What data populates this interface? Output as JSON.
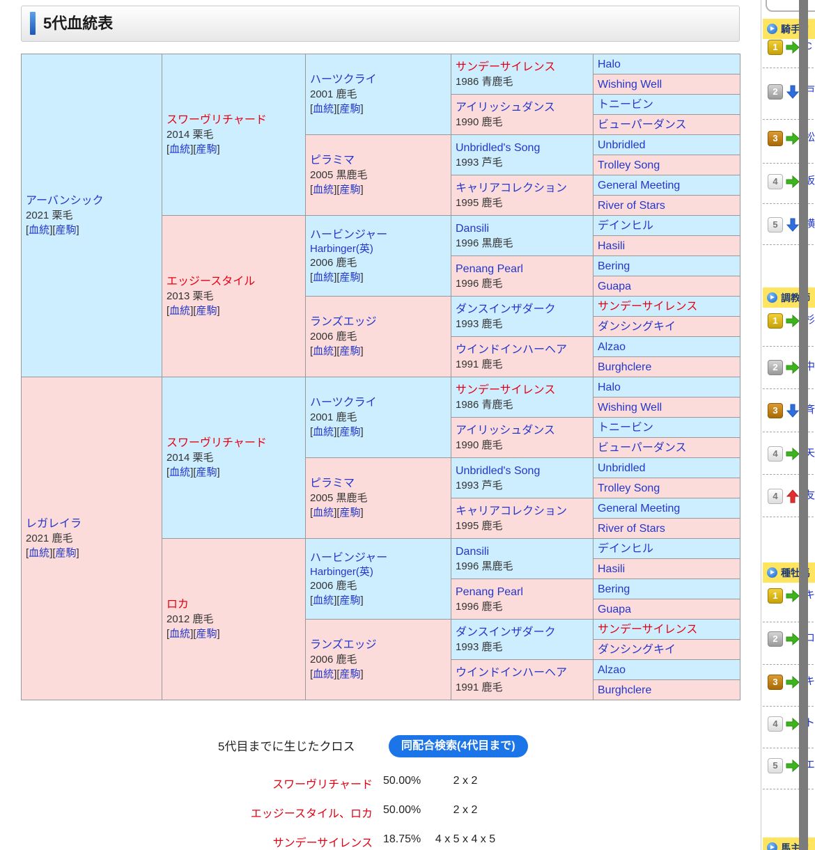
{
  "header": {
    "title": "5代血統表"
  },
  "pedigree": {
    "bloodline_label": "血統",
    "offspring_label": "産駒",
    "generations": [
      [
        {
          "name": "アーバンシック",
          "meta": "2021 栗毛",
          "sex": "m",
          "style": "link",
          "links": true
        },
        {
          "name": "レガレイラ",
          "meta": "2021 鹿毛",
          "sex": "f",
          "style": "link",
          "links": true
        }
      ],
      [
        {
          "name": "スワーヴリチャード",
          "meta": "2014 栗毛",
          "sex": "m",
          "style": "red",
          "links": true
        },
        {
          "name": "エッジースタイル",
          "meta": "2013 栗毛",
          "sex": "f",
          "style": "red",
          "links": true
        },
        {
          "name": "スワーヴリチャード",
          "meta": "2014 栗毛",
          "sex": "m",
          "style": "red",
          "links": true
        },
        {
          "name": "ロカ",
          "meta": "2012 鹿毛",
          "sex": "f",
          "style": "red",
          "links": true
        }
      ],
      [
        {
          "name": "ハーツクライ",
          "meta": "2001 鹿毛",
          "sex": "m",
          "style": "link",
          "links": true
        },
        {
          "name": "ピラミマ",
          "meta": "2005 黒鹿毛",
          "sex": "f",
          "style": "link",
          "links": true
        },
        {
          "name": "ハービンジャー",
          "name2": "Harbinger(英)",
          "meta": "2006 鹿毛",
          "sex": "m",
          "style": "link",
          "links": true
        },
        {
          "name": "ランズエッジ",
          "meta": "2006 鹿毛",
          "sex": "f",
          "style": "link",
          "links": true
        },
        {
          "name": "ハーツクライ",
          "meta": "2001 鹿毛",
          "sex": "m",
          "style": "link",
          "links": true
        },
        {
          "name": "ピラミマ",
          "meta": "2005 黒鹿毛",
          "sex": "f",
          "style": "link",
          "links": true
        },
        {
          "name": "ハービンジャー",
          "name2": "Harbinger(英)",
          "meta": "2006 鹿毛",
          "sex": "m",
          "style": "link",
          "links": true
        },
        {
          "name": "ランズエッジ",
          "meta": "2006 鹿毛",
          "sex": "f",
          "style": "link",
          "links": true
        }
      ],
      [
        {
          "name": "サンデーサイレンス",
          "meta": "1986 青鹿毛",
          "sex": "m",
          "style": "red"
        },
        {
          "name": "アイリッシュダンス",
          "meta": "1990 鹿毛",
          "sex": "f",
          "style": "link"
        },
        {
          "name": "Unbridled's Song",
          "meta": "1993 芦毛",
          "sex": "m",
          "style": "link"
        },
        {
          "name": "キャリアコレクション",
          "meta": "1995 鹿毛",
          "sex": "f",
          "style": "link"
        },
        {
          "name": "Dansili",
          "meta": "1996 黒鹿毛",
          "sex": "m",
          "style": "link"
        },
        {
          "name": "Penang Pearl",
          "meta": "1996 鹿毛",
          "sex": "f",
          "style": "link"
        },
        {
          "name": "ダンスインザダーク",
          "meta": "1993 鹿毛",
          "sex": "m",
          "style": "link"
        },
        {
          "name": "ウインドインハーヘア",
          "meta": "1991 鹿毛",
          "sex": "f",
          "style": "link"
        },
        {
          "name": "サンデーサイレンス",
          "meta": "1986 青鹿毛",
          "sex": "m",
          "style": "red"
        },
        {
          "name": "アイリッシュダンス",
          "meta": "1990 鹿毛",
          "sex": "f",
          "style": "link"
        },
        {
          "name": "Unbridled's Song",
          "meta": "1993 芦毛",
          "sex": "m",
          "style": "link"
        },
        {
          "name": "キャリアコレクション",
          "meta": "1995 鹿毛",
          "sex": "f",
          "style": "link"
        },
        {
          "name": "Dansili",
          "meta": "1996 黒鹿毛",
          "sex": "m",
          "style": "link"
        },
        {
          "name": "Penang Pearl",
          "meta": "1996 鹿毛",
          "sex": "f",
          "style": "link"
        },
        {
          "name": "ダンスインザダーク",
          "meta": "1993 鹿毛",
          "sex": "m",
          "style": "link"
        },
        {
          "name": "ウインドインハーヘア",
          "meta": "1991 鹿毛",
          "sex": "f",
          "style": "link"
        }
      ],
      [
        {
          "name": "Halo",
          "sex": "m",
          "style": "link"
        },
        {
          "name": "Wishing Well",
          "sex": "f",
          "style": "link"
        },
        {
          "name": "トニービン",
          "sex": "m",
          "style": "link"
        },
        {
          "name": "ビューパーダンス",
          "sex": "f",
          "style": "link"
        },
        {
          "name": "Unbridled",
          "sex": "m",
          "style": "link"
        },
        {
          "name": "Trolley Song",
          "sex": "f",
          "style": "link"
        },
        {
          "name": "General Meeting",
          "sex": "m",
          "style": "link"
        },
        {
          "name": "River of Stars",
          "sex": "f",
          "style": "link"
        },
        {
          "name": "デインヒル",
          "sex": "m",
          "style": "link"
        },
        {
          "name": "Hasili",
          "sex": "f",
          "style": "link"
        },
        {
          "name": "Bering",
          "sex": "m",
          "style": "link"
        },
        {
          "name": "Guapa",
          "sex": "f",
          "style": "link"
        },
        {
          "name": "サンデーサイレンス",
          "sex": "m",
          "style": "red"
        },
        {
          "name": "ダンシングキイ",
          "sex": "f",
          "style": "link"
        },
        {
          "name": "Alzao",
          "sex": "m",
          "style": "link"
        },
        {
          "name": "Burghclere",
          "sex": "f",
          "style": "link"
        },
        {
          "name": "Halo",
          "sex": "m",
          "style": "link"
        },
        {
          "name": "Wishing Well",
          "sex": "f",
          "style": "link"
        },
        {
          "name": "トニービン",
          "sex": "m",
          "style": "link"
        },
        {
          "name": "ビューパーダンス",
          "sex": "f",
          "style": "link"
        },
        {
          "name": "Unbridled",
          "sex": "m",
          "style": "link"
        },
        {
          "name": "Trolley Song",
          "sex": "f",
          "style": "link"
        },
        {
          "name": "General Meeting",
          "sex": "m",
          "style": "link"
        },
        {
          "name": "River of Stars",
          "sex": "f",
          "style": "link"
        },
        {
          "name": "デインヒル",
          "sex": "m",
          "style": "link"
        },
        {
          "name": "Hasili",
          "sex": "f",
          "style": "link"
        },
        {
          "name": "Bering",
          "sex": "m",
          "style": "link"
        },
        {
          "name": "Guapa",
          "sex": "f",
          "style": "link"
        },
        {
          "name": "サンデーサイレンス",
          "sex": "m",
          "style": "red"
        },
        {
          "name": "ダンシングキイ",
          "sex": "f",
          "style": "link"
        },
        {
          "name": "Alzao",
          "sex": "m",
          "style": "link"
        },
        {
          "name": "Burghclere",
          "sex": "f",
          "style": "link"
        }
      ]
    ]
  },
  "cross": {
    "label": "5代目までに生じたクロス",
    "button": "同配合検索(4代目まで)",
    "rows": [
      {
        "name": "スワーヴリチャード",
        "percent": "50.00%",
        "pattern": "2 x 2"
      },
      {
        "name": "エッジースタイル、ロカ",
        "percent": "50.00%",
        "pattern": "2 x 2"
      },
      {
        "name": "サンデーサイレンス",
        "percent": "18.75%",
        "pattern": "4 x 5 x 4 x 5"
      }
    ]
  },
  "sidebar": {
    "sections": [
      {
        "label": "騎手リ",
        "items": [
          {
            "rank": "1",
            "tier": "gold",
            "trend": "right",
            "name": "C"
          },
          {
            "rank": "2",
            "tier": "silver",
            "trend": "down",
            "name": "戸"
          },
          {
            "rank": "3",
            "tier": "bronze",
            "trend": "right",
            "name": "松"
          },
          {
            "rank": "4",
            "tier": "plain",
            "trend": "right",
            "name": "坂"
          },
          {
            "rank": "5",
            "tier": "plain",
            "trend": "down",
            "name": "横"
          }
        ]
      },
      {
        "label": "調教師",
        "items": [
          {
            "rank": "1",
            "tier": "gold",
            "trend": "right",
            "name": "杉"
          },
          {
            "rank": "2",
            "tier": "silver",
            "trend": "right",
            "name": "中"
          },
          {
            "rank": "3",
            "tier": "bronze",
            "trend": "down",
            "name": "斉"
          },
          {
            "rank": "4",
            "tier": "plain",
            "trend": "right",
            "name": "矢"
          },
          {
            "rank": "4",
            "tier": "plain",
            "trend": "up",
            "name": "友"
          }
        ]
      },
      {
        "label": "種牡馬",
        "items": [
          {
            "rank": "1",
            "tier": "gold",
            "trend": "right",
            "name": "キ"
          },
          {
            "rank": "2",
            "tier": "silver",
            "trend": "right",
            "name": "ロ"
          },
          {
            "rank": "3",
            "tier": "bronze",
            "trend": "right",
            "name": "キ"
          },
          {
            "rank": "4",
            "tier": "plain",
            "trend": "right",
            "name": "ト"
          },
          {
            "rank": "5",
            "tier": "plain",
            "trend": "right",
            "name": "エ"
          }
        ]
      },
      {
        "label": "馬主リ",
        "items": []
      }
    ]
  },
  "colors": {
    "male_cell": "#cdeeff",
    "female_cell": "#fcdcda",
    "link_blue": "#2336cc",
    "highlight_red": "#e60012",
    "button_blue": "#1b74e8",
    "header_yellow": "#ffe45f",
    "scrollbar_gray": "#7b7b7b"
  }
}
